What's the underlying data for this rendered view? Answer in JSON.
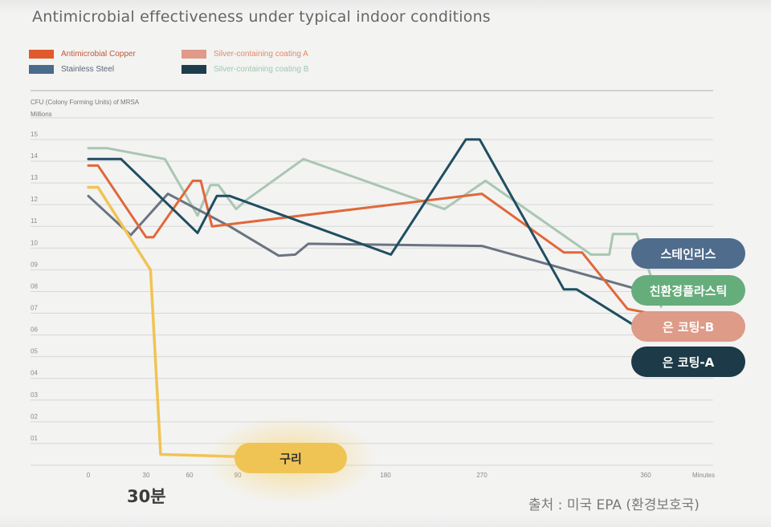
{
  "chart_data": {
    "type": "line",
    "title": "Antimicrobial effectiveness under typical indoor conditions",
    "ylabel_line1": "CFU (Colony Forming Units) of MRSA",
    "ylabel_line2": "Millions",
    "xunit": "Minutes",
    "x_ticks": [
      "0",
      "30",
      "60",
      "90",
      "180",
      "270",
      "360"
    ],
    "y_ticks": [
      "01",
      "02",
      "03",
      "04",
      "05",
      "06",
      "07",
      "08",
      "09",
      "10",
      "11",
      "12",
      "13",
      "14",
      "15"
    ],
    "ylim": [
      0,
      15.7
    ],
    "grid": "horizontal",
    "legend_position": "top-left",
    "legend": [
      {
        "label": "Antimicrobial Copper",
        "color": "#e05a2b"
      },
      {
        "label": "Stainless Steel",
        "color": "#4a6b8c"
      },
      {
        "label": "Silver-containing coating A",
        "color": "#df9a88"
      },
      {
        "label": "Silver-containing coating B",
        "color": "#1d3d4c"
      }
    ],
    "series": [
      {
        "key": "copper",
        "color": "#f0c454",
        "width": 3.5,
        "points": [
          [
            0,
            12.8
          ],
          [
            5,
            12.8
          ],
          [
            33,
            9.0
          ],
          [
            40,
            0.5
          ],
          [
            90,
            0.4
          ]
        ]
      },
      {
        "key": "stainless",
        "color": "#6a7480",
        "width": 3,
        "points": [
          [
            0,
            12.4
          ],
          [
            22,
            10.6
          ],
          [
            45,
            12.5
          ],
          [
            85,
            11.0
          ],
          [
            115,
            9.65
          ],
          [
            125,
            9.7
          ],
          [
            133,
            10.2
          ],
          [
            270,
            10.1
          ],
          [
            360,
            8.0
          ]
        ]
      },
      {
        "key": "plastic",
        "color": "#a9c6b3",
        "width": 3,
        "points": [
          [
            0,
            14.6
          ],
          [
            10,
            14.6
          ],
          [
            43,
            14.1
          ],
          [
            65,
            11.5
          ],
          [
            73,
            12.9
          ],
          [
            78,
            12.9
          ],
          [
            89,
            11.8
          ],
          [
            95,
            12.2
          ],
          [
            130,
            14.1
          ],
          [
            235,
            11.8
          ],
          [
            272,
            13.1
          ],
          [
            330,
            9.7
          ],
          [
            340,
            9.7
          ],
          [
            342,
            10.65
          ],
          [
            355,
            10.65
          ],
          [
            368,
            7.3
          ]
        ]
      },
      {
        "key": "coatingB",
        "color": "#e0683a",
        "width": 3,
        "points": [
          [
            0,
            13.8
          ],
          [
            5,
            13.8
          ],
          [
            30,
            10.5
          ],
          [
            35,
            10.5
          ],
          [
            62,
            13.1
          ],
          [
            67,
            13.1
          ],
          [
            74,
            11.0
          ],
          [
            270,
            12.5
          ],
          [
            315,
            9.8
          ],
          [
            325,
            9.8
          ],
          [
            350,
            7.2
          ],
          [
            362,
            7.0
          ]
        ]
      },
      {
        "key": "coatingA",
        "color": "#1f4e60",
        "width": 3,
        "points": [
          [
            0,
            14.1
          ],
          [
            17,
            14.1
          ],
          [
            65,
            10.7
          ],
          [
            77,
            12.4
          ],
          [
            85,
            12.4
          ],
          [
            185,
            9.7
          ],
          [
            255,
            15.0
          ],
          [
            268,
            15.0
          ],
          [
            315,
            8.1
          ],
          [
            322,
            8.1
          ],
          [
            362,
            6.0
          ]
        ]
      }
    ]
  },
  "labels": {
    "stainless": "스테인리스",
    "plastic": "친환경플라스틱",
    "coatingB": "은 코팅-B",
    "coatingA": "은 코팅-A",
    "copper": "구리",
    "thirty_min": "30분",
    "source": "출처 : 미국 EPA (환경보호국)"
  },
  "pill_colors": {
    "stainless": "#4f6c8c",
    "plastic": "#66ad7c",
    "coatingB": "#dd9b88",
    "coatingA": "#1c3a48",
    "copper": "#f0c454"
  }
}
